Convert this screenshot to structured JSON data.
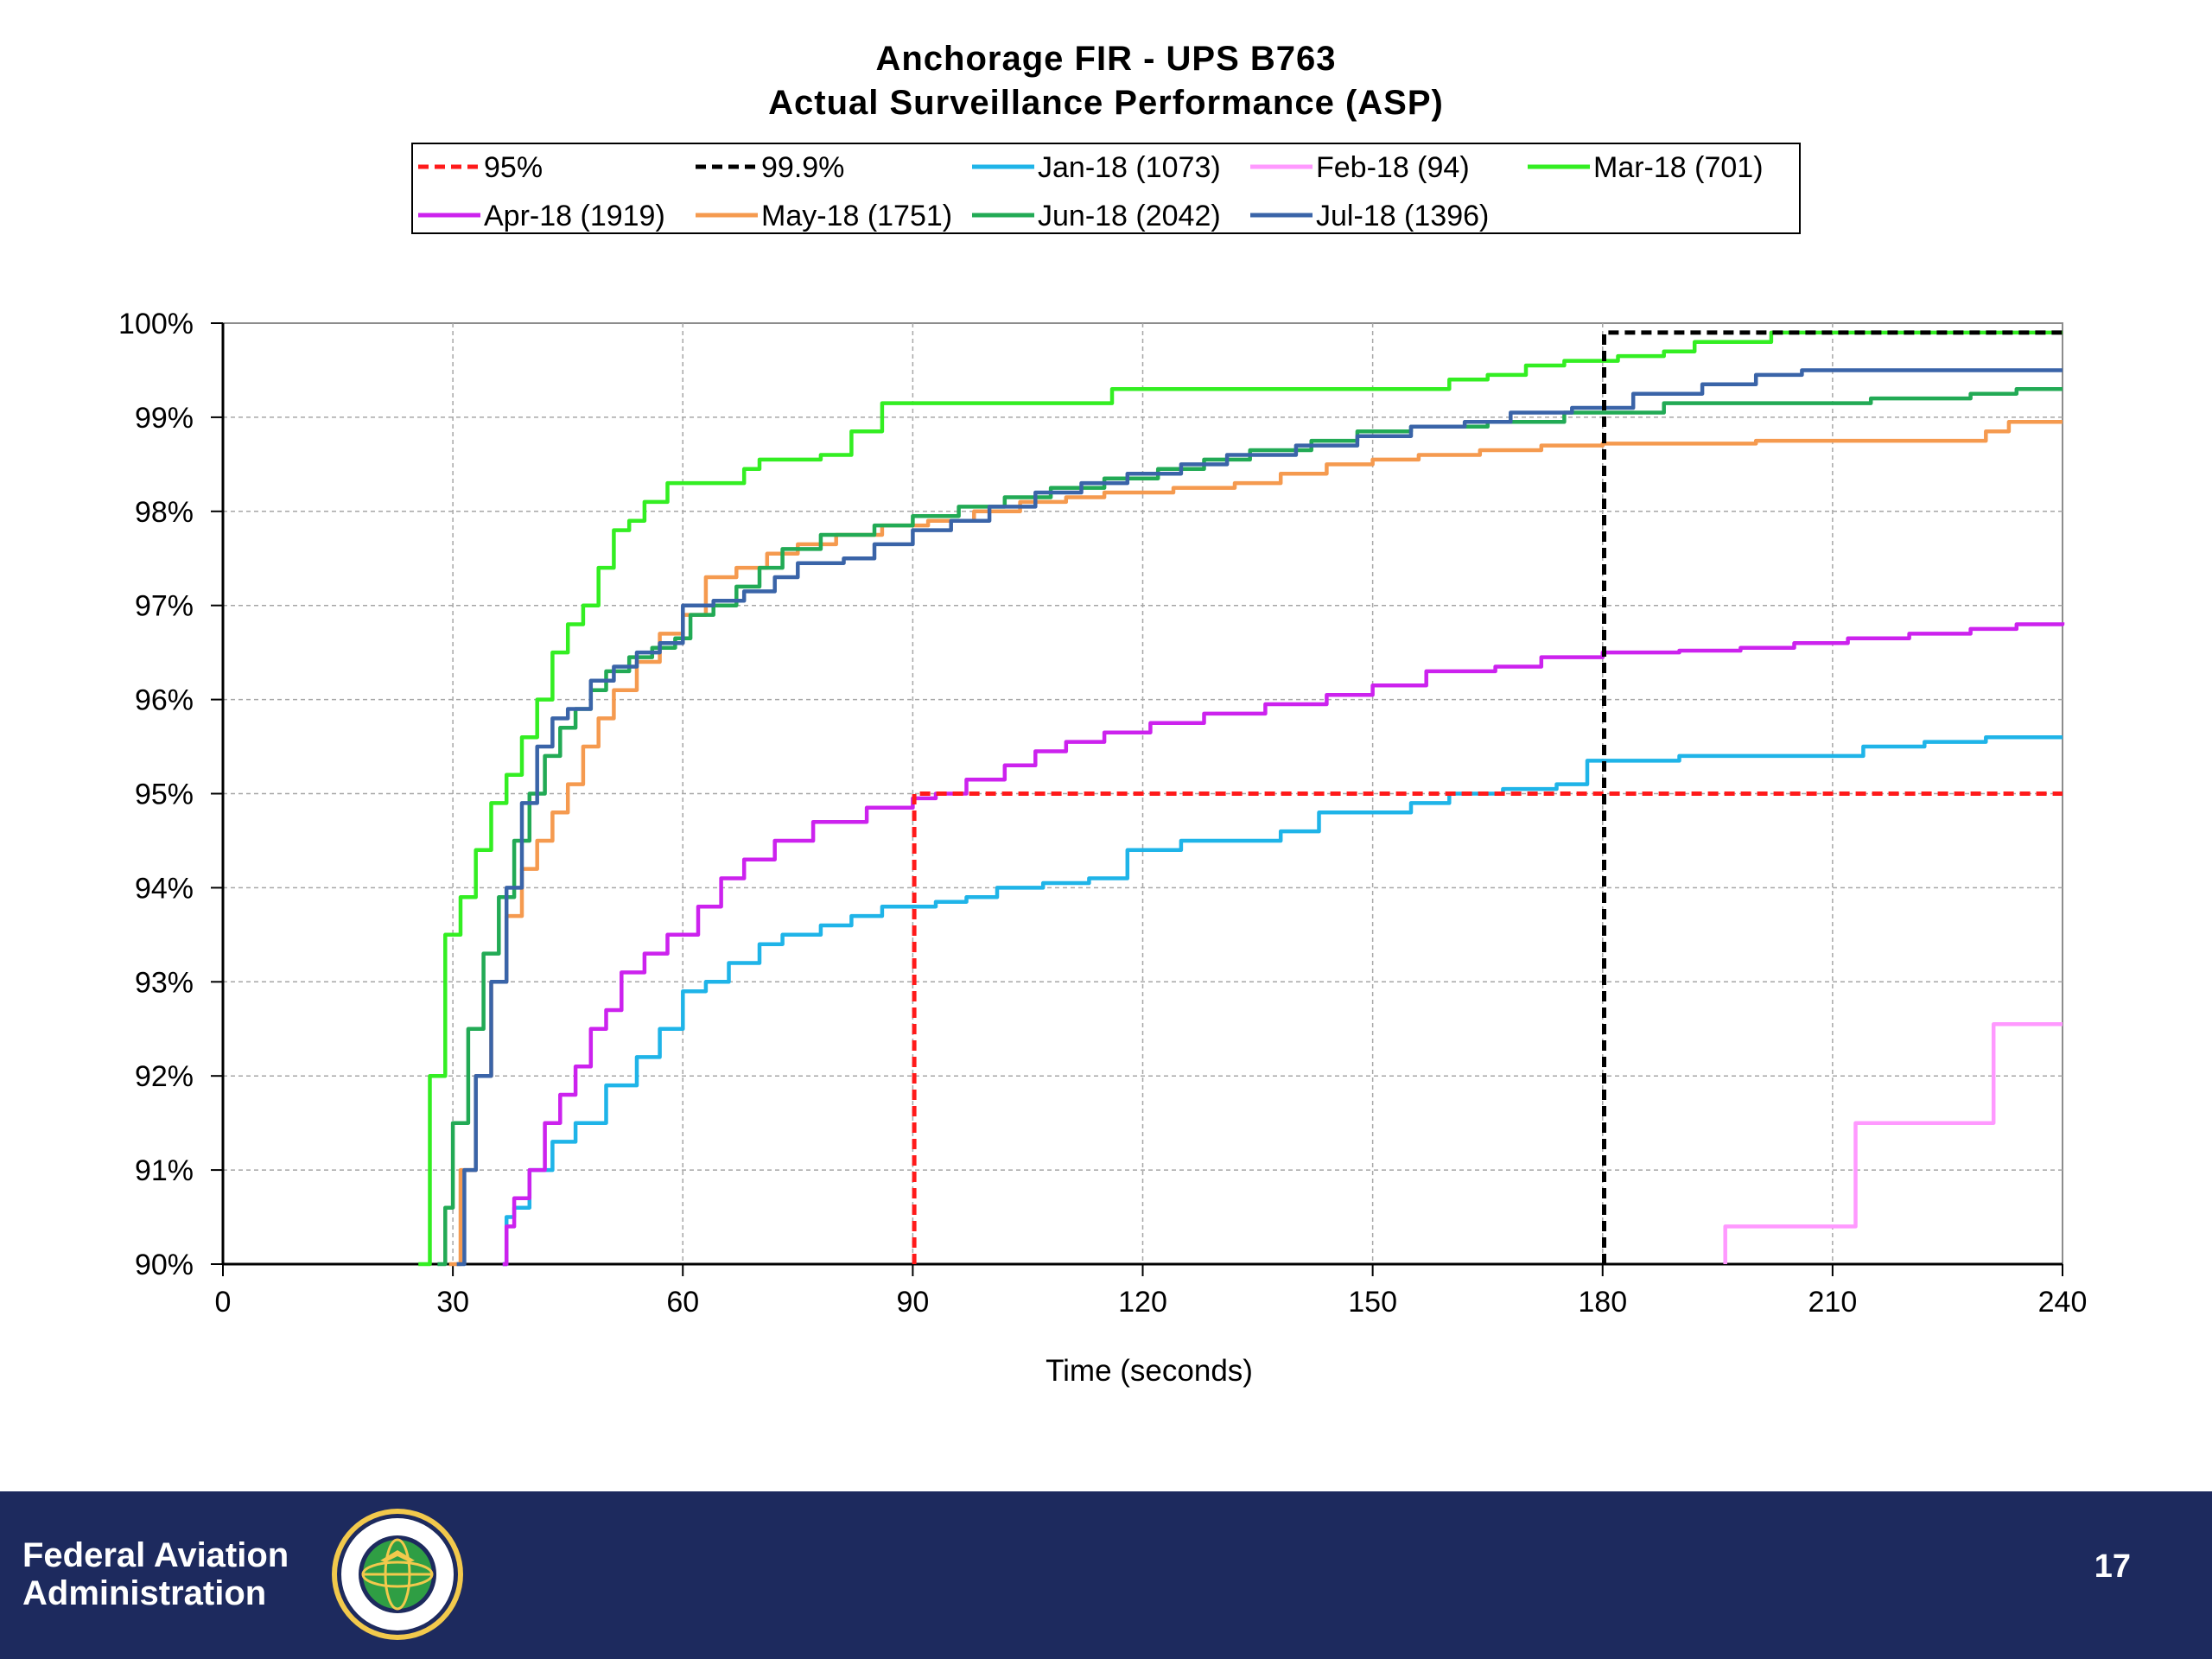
{
  "header": {
    "title_line1": "Anchorage  FIR  - UPS B763",
    "title_line2": "Actual  Surveillance  Performance  (ASP)"
  },
  "footer": {
    "org_line1": "Federal Aviation",
    "org_line2": "Administration",
    "page_number": "17",
    "background": "#1d2a5e"
  },
  "chart_data": {
    "type": "line",
    "title": "Anchorage  FIR  - UPS B763\nActual  Surveillance  Performance  (ASP)",
    "xlabel": "Time (seconds)",
    "ylabel": "",
    "xlim": [
      0,
      240
    ],
    "ylim": [
      90,
      100
    ],
    "xticks": [
      0,
      30,
      60,
      90,
      120,
      150,
      180,
      210,
      240
    ],
    "yticks": [
      90,
      91,
      92,
      93,
      94,
      95,
      96,
      97,
      98,
      99,
      100
    ],
    "ytick_suffix": "%",
    "grid": true,
    "legend_position": "top",
    "reference_lines": [
      {
        "name": "95%",
        "color": "#ff1a1a",
        "style": "dashed",
        "points": [
          [
            90.2,
            90
          ],
          [
            90.2,
            95
          ],
          [
            240,
            95
          ]
        ]
      },
      {
        "name": "99.9%",
        "color": "#000000",
        "style": "dashed",
        "points": [
          [
            180.2,
            90
          ],
          [
            180.2,
            99.9
          ],
          [
            240,
            99.9
          ]
        ]
      }
    ],
    "series": [
      {
        "name": "Jan-18 (1073)",
        "color": "#1fb4e8",
        "step": true,
        "points": [
          [
            36.5,
            90
          ],
          [
            37,
            90.5
          ],
          [
            38,
            90.6
          ],
          [
            40,
            91.0
          ],
          [
            43,
            91.3
          ],
          [
            46,
            91.5
          ],
          [
            50,
            91.9
          ],
          [
            54,
            92.2
          ],
          [
            57,
            92.5
          ],
          [
            60,
            92.9
          ],
          [
            63,
            93.0
          ],
          [
            66,
            93.2
          ],
          [
            70,
            93.4
          ],
          [
            73,
            93.5
          ],
          [
            78,
            93.6
          ],
          [
            82,
            93.7
          ],
          [
            86,
            93.8
          ],
          [
            93,
            93.85
          ],
          [
            97,
            93.9
          ],
          [
            101,
            94.0
          ],
          [
            107,
            94.05
          ],
          [
            113,
            94.1
          ],
          [
            118,
            94.4
          ],
          [
            125,
            94.5
          ],
          [
            130,
            94.5
          ],
          [
            138,
            94.6
          ],
          [
            143,
            94.8
          ],
          [
            155,
            94.9
          ],
          [
            160,
            95.0
          ],
          [
            167,
            95.05
          ],
          [
            174,
            95.1
          ],
          [
            178,
            95.35
          ],
          [
            190,
            95.4
          ],
          [
            214,
            95.5
          ],
          [
            222,
            95.55
          ],
          [
            230,
            95.6
          ],
          [
            240,
            95.6
          ]
        ]
      },
      {
        "name": "Feb-18 (94)",
        "color": "#ff99ff",
        "step": true,
        "points": [
          [
            196,
            90
          ],
          [
            196,
            90.4
          ],
          [
            213,
            90.4
          ],
          [
            213,
            91.5
          ],
          [
            231,
            91.5
          ],
          [
            231,
            92.55
          ],
          [
            240,
            92.55
          ]
        ]
      },
      {
        "name": "Mar-18 (701)",
        "color": "#33ee22",
        "step": true,
        "points": [
          [
            25.5,
            90
          ],
          [
            27,
            92.0
          ],
          [
            29,
            93.5
          ],
          [
            31,
            93.9
          ],
          [
            33,
            94.4
          ],
          [
            35,
            94.9
          ],
          [
            37,
            95.2
          ],
          [
            39,
            95.6
          ],
          [
            41,
            96.0
          ],
          [
            43,
            96.5
          ],
          [
            45,
            96.8
          ],
          [
            47,
            97.0
          ],
          [
            49,
            97.4
          ],
          [
            51,
            97.8
          ],
          [
            53,
            97.9
          ],
          [
            55,
            98.1
          ],
          [
            58,
            98.3
          ],
          [
            68,
            98.45
          ],
          [
            70,
            98.55
          ],
          [
            78,
            98.6
          ],
          [
            82,
            98.85
          ],
          [
            86,
            99.15
          ],
          [
            116,
            99.3
          ],
          [
            160,
            99.4
          ],
          [
            165,
            99.45
          ],
          [
            170,
            99.55
          ],
          [
            175,
            99.6
          ],
          [
            182,
            99.65
          ],
          [
            188,
            99.7
          ],
          [
            192,
            99.8
          ],
          [
            202,
            99.9
          ],
          [
            240,
            99.9
          ]
        ]
      },
      {
        "name": "Apr-18 (1919)",
        "color": "#cc22ee",
        "step": true,
        "points": [
          [
            36.5,
            90
          ],
          [
            37,
            90.4
          ],
          [
            38,
            90.7
          ],
          [
            40,
            91.0
          ],
          [
            42,
            91.5
          ],
          [
            44,
            91.8
          ],
          [
            46,
            92.1
          ],
          [
            48,
            92.5
          ],
          [
            50,
            92.7
          ],
          [
            52,
            93.1
          ],
          [
            55,
            93.3
          ],
          [
            58,
            93.5
          ],
          [
            62,
            93.8
          ],
          [
            65,
            94.1
          ],
          [
            68,
            94.3
          ],
          [
            72,
            94.5
          ],
          [
            77,
            94.7
          ],
          [
            84,
            94.85
          ],
          [
            90,
            94.95
          ],
          [
            93,
            95.0
          ],
          [
            97,
            95.15
          ],
          [
            102,
            95.3
          ],
          [
            106,
            95.45
          ],
          [
            110,
            95.55
          ],
          [
            115,
            95.65
          ],
          [
            121,
            95.75
          ],
          [
            128,
            95.85
          ],
          [
            136,
            95.95
          ],
          [
            144,
            96.05
          ],
          [
            150,
            96.15
          ],
          [
            157,
            96.3
          ],
          [
            166,
            96.35
          ],
          [
            172,
            96.45
          ],
          [
            180,
            96.5
          ],
          [
            190,
            96.52
          ],
          [
            198,
            96.55
          ],
          [
            205,
            96.6
          ],
          [
            212,
            96.65
          ],
          [
            220,
            96.7
          ],
          [
            228,
            96.75
          ],
          [
            234,
            96.8
          ],
          [
            240,
            96.82
          ]
        ]
      },
      {
        "name": "May-18 (1751)",
        "color": "#f59a4f",
        "step": true,
        "points": [
          [
            29.5,
            90
          ],
          [
            31,
            91.0
          ],
          [
            33,
            92.0
          ],
          [
            35,
            93.0
          ],
          [
            37,
            93.7
          ],
          [
            39,
            94.2
          ],
          [
            41,
            94.5
          ],
          [
            43,
            94.8
          ],
          [
            45,
            95.1
          ],
          [
            47,
            95.5
          ],
          [
            49,
            95.8
          ],
          [
            51,
            96.1
          ],
          [
            54,
            96.4
          ],
          [
            57,
            96.7
          ],
          [
            60,
            96.9
          ],
          [
            63,
            97.3
          ],
          [
            67,
            97.4
          ],
          [
            71,
            97.55
          ],
          [
            75,
            97.65
          ],
          [
            80,
            97.75
          ],
          [
            86,
            97.85
          ],
          [
            92,
            97.9
          ],
          [
            98,
            98.0
          ],
          [
            104,
            98.1
          ],
          [
            110,
            98.15
          ],
          [
            115,
            98.2
          ],
          [
            124,
            98.25
          ],
          [
            132,
            98.3
          ],
          [
            138,
            98.4
          ],
          [
            144,
            98.5
          ],
          [
            150,
            98.55
          ],
          [
            156,
            98.6
          ],
          [
            164,
            98.65
          ],
          [
            172,
            98.7
          ],
          [
            180,
            98.72
          ],
          [
            200,
            98.75
          ],
          [
            220,
            98.75
          ],
          [
            230,
            98.85
          ],
          [
            233,
            98.95
          ],
          [
            240,
            98.95
          ]
        ]
      },
      {
        "name": "Jun-18 (2042)",
        "color": "#22aa55",
        "step": true,
        "points": [
          [
            28,
            90
          ],
          [
            29,
            90.6
          ],
          [
            30,
            91.5
          ],
          [
            32,
            92.5
          ],
          [
            34,
            93.3
          ],
          [
            36,
            93.9
          ],
          [
            38,
            94.5
          ],
          [
            40,
            95.0
          ],
          [
            42,
            95.4
          ],
          [
            44,
            95.7
          ],
          [
            46,
            95.9
          ],
          [
            48,
            96.1
          ],
          [
            50,
            96.3
          ],
          [
            53,
            96.45
          ],
          [
            56,
            96.55
          ],
          [
            59,
            96.65
          ],
          [
            61,
            96.9
          ],
          [
            64,
            97.0
          ],
          [
            67,
            97.2
          ],
          [
            70,
            97.4
          ],
          [
            73,
            97.6
          ],
          [
            78,
            97.75
          ],
          [
            85,
            97.85
          ],
          [
            90,
            97.95
          ],
          [
            96,
            98.05
          ],
          [
            102,
            98.15
          ],
          [
            108,
            98.25
          ],
          [
            115,
            98.35
          ],
          [
            122,
            98.45
          ],
          [
            128,
            98.55
          ],
          [
            134,
            98.65
          ],
          [
            142,
            98.75
          ],
          [
            148,
            98.85
          ],
          [
            155,
            98.9
          ],
          [
            165,
            98.95
          ],
          [
            175,
            99.05
          ],
          [
            188,
            99.15
          ],
          [
            200,
            99.15
          ],
          [
            215,
            99.2
          ],
          [
            228,
            99.25
          ],
          [
            234,
            99.3
          ],
          [
            240,
            99.3
          ]
        ]
      },
      {
        "name": "Jul-18 (1396)",
        "color": "#3a64a8",
        "step": true,
        "points": [
          [
            30.5,
            90
          ],
          [
            31.5,
            91.0
          ],
          [
            33,
            92.0
          ],
          [
            35,
            93.0
          ],
          [
            37,
            94.0
          ],
          [
            39,
            94.9
          ],
          [
            41,
            95.5
          ],
          [
            43,
            95.8
          ],
          [
            45,
            95.9
          ],
          [
            48,
            96.2
          ],
          [
            51,
            96.35
          ],
          [
            54,
            96.5
          ],
          [
            57,
            96.6
          ],
          [
            60,
            97.0
          ],
          [
            64,
            97.05
          ],
          [
            68,
            97.15
          ],
          [
            72,
            97.3
          ],
          [
            75,
            97.45
          ],
          [
            81,
            97.5
          ],
          [
            85,
            97.65
          ],
          [
            90,
            97.8
          ],
          [
            95,
            97.9
          ],
          [
            100,
            98.05
          ],
          [
            106,
            98.2
          ],
          [
            112,
            98.3
          ],
          [
            118,
            98.4
          ],
          [
            125,
            98.5
          ],
          [
            131,
            98.6
          ],
          [
            140,
            98.7
          ],
          [
            148,
            98.8
          ],
          [
            155,
            98.9
          ],
          [
            162,
            98.95
          ],
          [
            168,
            99.05
          ],
          [
            176,
            99.1
          ],
          [
            184,
            99.25
          ],
          [
            193,
            99.35
          ],
          [
            200,
            99.45
          ],
          [
            206,
            99.5
          ],
          [
            240,
            99.5
          ]
        ]
      }
    ]
  }
}
